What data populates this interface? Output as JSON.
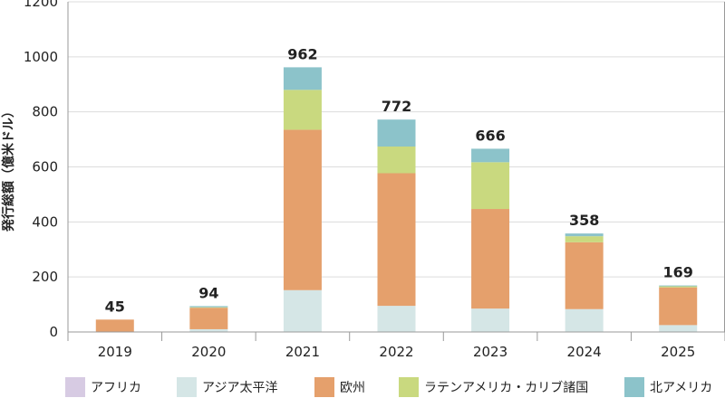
{
  "chart_data": {
    "type": "bar",
    "stacked": true,
    "categories": [
      "2019",
      "2020",
      "2021",
      "2022",
      "2023",
      "2024",
      "2025"
    ],
    "series": [
      {
        "name": "アフリカ",
        "color": "#d7cbe3",
        "values": [
          0,
          0,
          0,
          0,
          0,
          0,
          0
        ]
      },
      {
        "name": "アジア太平洋",
        "color": "#d5e6e6",
        "values": [
          0,
          10,
          152,
          95,
          85,
          83,
          25
        ]
      },
      {
        "name": "欧州",
        "color": "#e5a06c",
        "values": [
          45,
          78,
          583,
          482,
          362,
          243,
          137
        ]
      },
      {
        "name": "ラテンアメリカ・カリブ諸国",
        "color": "#c9d97f",
        "values": [
          0,
          2,
          145,
          97,
          170,
          22,
          4
        ]
      },
      {
        "name": "北アメリカ",
        "color": "#8cc3ca",
        "values": [
          0,
          4,
          82,
          98,
          49,
          10,
          3
        ]
      }
    ],
    "totals": [
      "45",
      "94",
      "962",
      "772",
      "666",
      "358",
      "169"
    ],
    "ylabel": "発行総額（億米ドル）",
    "ylim": [
      0,
      1200
    ],
    "yticks": [
      "0",
      "200",
      "400",
      "600",
      "800",
      "1000",
      "1200"
    ],
    "grid": true,
    "legend_position": "bottom"
  }
}
